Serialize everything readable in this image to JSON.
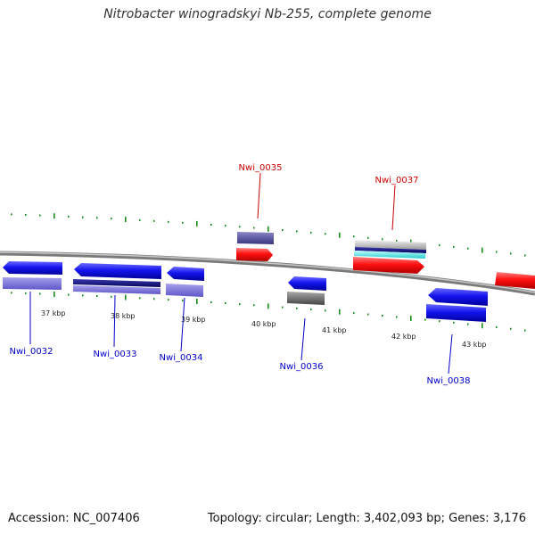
{
  "title": "Nitrobacter winogradskyi Nb-255, complete genome",
  "footer": {
    "accession": "Accession: NC_007406",
    "summary": "Topology: circular; Length: 3,402,093 bp; Genes: 3,176"
  },
  "ticks": [
    "37 kbp",
    "38 kbp",
    "39 kbp",
    "40 kbp",
    "41 kbp",
    "42 kbp",
    "43 kbp"
  ],
  "gene_labels": [
    {
      "text": "Nwi_0032",
      "color": "#0000cc"
    },
    {
      "text": "Nwi_0033",
      "color": "#0000cc"
    },
    {
      "text": "Nwi_0034",
      "color": "#0000cc"
    },
    {
      "text": "Nwi_0035",
      "color": "#cc0000"
    },
    {
      "text": "Nwi_0036",
      "color": "#0000cc"
    },
    {
      "text": "Nwi_0037",
      "color": "#cc0000"
    },
    {
      "text": "Nwi_0038",
      "color": "#0000cc"
    }
  ],
  "colors": {
    "forward_strand": "#ff0000",
    "reverse_strand": "#0000ee",
    "backbone": "#888888",
    "gc_ticks": "#1a8a1a"
  }
}
